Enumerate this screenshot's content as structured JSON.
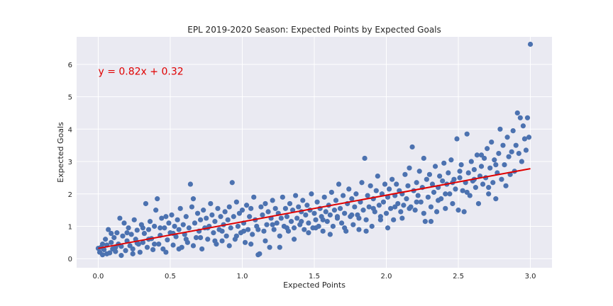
{
  "chart_data": {
    "type": "scatter",
    "title": "EPL 2019-2020 Season: Expected Points by Expected Goals",
    "xlabel": "Expected Points",
    "ylabel": "Expected Goals",
    "xlim": [
      -0.15,
      3.15
    ],
    "ylim": [
      -0.28,
      6.85
    ],
    "xticks": [
      0.0,
      0.5,
      1.0,
      1.5,
      2.0,
      2.5,
      3.0
    ],
    "xtick_labels": [
      "0.0",
      "0.5",
      "1.0",
      "1.5",
      "2.0",
      "2.5",
      "3.0"
    ],
    "yticks": [
      0,
      1,
      2,
      3,
      4,
      5,
      6
    ],
    "ytick_labels": [
      "0",
      "1",
      "2",
      "3",
      "4",
      "5",
      "6"
    ],
    "grid": true,
    "background": "#EAEAF2",
    "point_color": "#4C72B0",
    "fit_line": {
      "slope": 0.82,
      "intercept": 0.32,
      "x_range": [
        0.0,
        3.0
      ],
      "color": "#E00000"
    },
    "annotation": {
      "text": "y = 0.82x + 0.32",
      "x": 0.0,
      "y": 5.68,
      "color": "#E00000"
    },
    "points": [
      [
        0.0,
        0.32
      ],
      [
        0.02,
        0.35
      ],
      [
        0.03,
        0.12
      ],
      [
        0.04,
        0.28
      ],
      [
        0.05,
        0.6
      ],
      [
        0.06,
        0.42
      ],
      [
        0.07,
        0.9
      ],
      [
        0.08,
        0.18
      ],
      [
        0.09,
        0.5
      ],
      [
        0.1,
        0.3
      ],
      [
        0.11,
        0.65
      ],
      [
        0.12,
        0.22
      ],
      [
        0.13,
        0.8
      ],
      [
        0.14,
        0.45
      ],
      [
        0.15,
        1.25
      ],
      [
        0.16,
        0.38
      ],
      [
        0.17,
        0.7
      ],
      [
        0.18,
        1.1
      ],
      [
        0.19,
        0.25
      ],
      [
        0.2,
        0.55
      ],
      [
        0.21,
        0.95
      ],
      [
        0.22,
        0.4
      ],
      [
        0.23,
        0.75
      ],
      [
        0.24,
        0.3
      ],
      [
        0.25,
        1.2
      ],
      [
        0.26,
        0.6
      ],
      [
        0.27,
        0.88
      ],
      [
        0.28,
        0.45
      ],
      [
        0.29,
        0.2
      ],
      [
        0.3,
        1.05
      ],
      [
        0.31,
        0.5
      ],
      [
        0.32,
        0.78
      ],
      [
        0.33,
        1.7
      ],
      [
        0.34,
        0.35
      ],
      [
        0.35,
        0.9
      ],
      [
        0.36,
        1.15
      ],
      [
        0.37,
        0.62
      ],
      [
        0.38,
        0.28
      ],
      [
        0.39,
        1.0
      ],
      [
        0.4,
        1.5
      ],
      [
        0.41,
        1.85
      ],
      [
        0.42,
        0.45
      ],
      [
        0.43,
        0.72
      ],
      [
        0.44,
        1.25
      ],
      [
        0.45,
        0.3
      ],
      [
        0.46,
        0.95
      ],
      [
        0.47,
        1.3
      ],
      [
        0.48,
        0.58
      ],
      [
        0.49,
        1.1
      ],
      [
        0.5,
        0.8
      ],
      [
        0.51,
        1.35
      ],
      [
        0.52,
        0.42
      ],
      [
        0.53,
        1.0
      ],
      [
        0.54,
        0.68
      ],
      [
        0.55,
        1.2
      ],
      [
        0.56,
        0.9
      ],
      [
        0.57,
        1.55
      ],
      [
        0.58,
        0.35
      ],
      [
        0.59,
        1.05
      ],
      [
        0.6,
        0.75
      ],
      [
        0.61,
        1.3
      ],
      [
        0.62,
        0.5
      ],
      [
        0.63,
        0.95
      ],
      [
        0.64,
        2.3
      ],
      [
        0.65,
        1.6
      ],
      [
        0.66,
        1.85
      ],
      [
        0.67,
        1.1
      ],
      [
        0.68,
        0.65
      ],
      [
        0.69,
        1.4
      ],
      [
        0.7,
        0.85
      ],
      [
        0.71,
        1.2
      ],
      [
        0.72,
        0.3
      ],
      [
        0.73,
        1.5
      ],
      [
        0.74,
        0.95
      ],
      [
        0.75,
        1.25
      ],
      [
        0.76,
        0.6
      ],
      [
        0.77,
        1.0
      ],
      [
        0.78,
        1.7
      ],
      [
        0.79,
        1.35
      ],
      [
        0.8,
        0.8
      ],
      [
        0.81,
        1.15
      ],
      [
        0.82,
        0.45
      ],
      [
        0.83,
        1.55
      ],
      [
        0.84,
        0.9
      ],
      [
        0.85,
        1.3
      ],
      [
        0.86,
        0.55
      ],
      [
        0.87,
        1.05
      ],
      [
        0.88,
        1.45
      ],
      [
        0.89,
        0.7
      ],
      [
        0.9,
        1.2
      ],
      [
        0.91,
        1.6
      ],
      [
        0.92,
        0.95
      ],
      [
        0.93,
        2.35
      ],
      [
        0.94,
        1.3
      ],
      [
        0.95,
        0.6
      ],
      [
        0.96,
        1.75
      ],
      [
        0.97,
        1.0
      ],
      [
        0.98,
        1.4
      ],
      [
        0.99,
        0.8
      ],
      [
        1.0,
        1.5
      ],
      [
        1.01,
        1.1
      ],
      [
        1.02,
        0.5
      ],
      [
        1.03,
        1.65
      ],
      [
        1.04,
        0.9
      ],
      [
        1.05,
        1.3
      ],
      [
        1.06,
        1.55
      ],
      [
        1.07,
        0.75
      ],
      [
        1.08,
        1.9
      ],
      [
        1.09,
        1.2
      ],
      [
        1.1,
        1.0
      ],
      [
        1.11,
        0.12
      ],
      [
        1.12,
        0.15
      ],
      [
        1.13,
        1.6
      ],
      [
        1.14,
        1.35
      ],
      [
        1.15,
        0.85
      ],
      [
        1.16,
        1.7
      ],
      [
        1.17,
        1.05
      ],
      [
        1.18,
        1.45
      ],
      [
        1.19,
        0.35
      ],
      [
        1.2,
        1.25
      ],
      [
        1.21,
        1.8
      ],
      [
        1.22,
        0.9
      ],
      [
        1.23,
        1.55
      ],
      [
        1.24,
        1.1
      ],
      [
        1.25,
        1.4
      ],
      [
        1.26,
        0.7
      ],
      [
        1.27,
        1.25
      ],
      [
        1.28,
        1.9
      ],
      [
        1.29,
        1.0
      ],
      [
        1.3,
        1.55
      ],
      [
        1.31,
        1.3
      ],
      [
        1.32,
        0.85
      ],
      [
        1.33,
        1.7
      ],
      [
        1.34,
        1.15
      ],
      [
        1.35,
        1.5
      ],
      [
        1.36,
        0.95
      ],
      [
        1.37,
        1.95
      ],
      [
        1.38,
        1.25
      ],
      [
        1.39,
        1.6
      ],
      [
        1.4,
        1.05
      ],
      [
        1.41,
        1.45
      ],
      [
        1.42,
        1.8
      ],
      [
        1.43,
        0.9
      ],
      [
        1.44,
        1.35
      ],
      [
        1.45,
        1.65
      ],
      [
        1.46,
        1.1
      ],
      [
        1.47,
        1.5
      ],
      [
        1.48,
        2.0
      ],
      [
        1.49,
        0.95
      ],
      [
        1.5,
        1.4
      ],
      [
        1.51,
        1.2
      ],
      [
        1.52,
        1.75
      ],
      [
        1.53,
        1.0
      ],
      [
        1.54,
        1.55
      ],
      [
        1.55,
        1.3
      ],
      [
        1.56,
        0.85
      ],
      [
        1.57,
        1.9
      ],
      [
        1.58,
        1.45
      ],
      [
        1.59,
        1.15
      ],
      [
        1.6,
        1.65
      ],
      [
        1.61,
        1.35
      ],
      [
        1.62,
        2.05
      ],
      [
        1.63,
        1.0
      ],
      [
        1.64,
        1.5
      ],
      [
        1.65,
        1.8
      ],
      [
        1.66,
        1.25
      ],
      [
        1.67,
        2.3
      ],
      [
        1.68,
        1.55
      ],
      [
        1.69,
        1.1
      ],
      [
        1.7,
        1.95
      ],
      [
        1.71,
        1.4
      ],
      [
        1.72,
        0.85
      ],
      [
        1.73,
        1.7
      ],
      [
        1.74,
        2.15
      ],
      [
        1.75,
        1.3
      ],
      [
        1.76,
        1.85
      ],
      [
        1.77,
        1.05
      ],
      [
        1.78,
        1.6
      ],
      [
        1.79,
        2.0
      ],
      [
        1.8,
        1.35
      ],
      [
        1.81,
        0.9
      ],
      [
        1.82,
        1.75
      ],
      [
        1.83,
        2.35
      ],
      [
        1.84,
        1.5
      ],
      [
        1.85,
        3.1
      ],
      [
        1.86,
        1.2
      ],
      [
        1.87,
        1.95
      ],
      [
        1.88,
        1.6
      ],
      [
        1.89,
        2.25
      ],
      [
        1.9,
        1.0
      ],
      [
        1.91,
        1.85
      ],
      [
        1.92,
        1.45
      ],
      [
        1.93,
        2.1
      ],
      [
        1.94,
        2.55
      ],
      [
        1.95,
        1.65
      ],
      [
        1.96,
        1.3
      ],
      [
        1.97,
        2.0
      ],
      [
        1.98,
        1.75
      ],
      [
        1.99,
        2.3
      ],
      [
        2.0,
        1.4
      ],
      [
        2.01,
        1.9
      ],
      [
        2.02,
        2.15
      ],
      [
        2.03,
        1.55
      ],
      [
        2.04,
        2.45
      ],
      [
        2.05,
        1.2
      ],
      [
        2.06,
        1.95
      ],
      [
        2.07,
        2.3
      ],
      [
        2.08,
        1.7
      ],
      [
        2.09,
        2.1
      ],
      [
        2.1,
        1.45
      ],
      [
        2.11,
        2.0
      ],
      [
        2.12,
        1.65
      ],
      [
        2.13,
        2.6
      ],
      [
        2.14,
        1.85
      ],
      [
        2.15,
        2.25
      ],
      [
        2.16,
        2.8
      ],
      [
        2.17,
        1.6
      ],
      [
        2.18,
        3.45
      ],
      [
        2.19,
        2.1
      ],
      [
        2.2,
        1.5
      ],
      [
        2.21,
        2.35
      ],
      [
        2.22,
        1.95
      ],
      [
        2.23,
        2.7
      ],
      [
        2.24,
        1.75
      ],
      [
        2.25,
        2.2
      ],
      [
        2.26,
        3.1
      ],
      [
        2.27,
        1.15
      ],
      [
        2.28,
        2.45
      ],
      [
        2.29,
        1.9
      ],
      [
        2.3,
        2.6
      ],
      [
        2.31,
        1.6
      ],
      [
        2.32,
        2.3
      ],
      [
        2.33,
        2.05
      ],
      [
        2.34,
        2.85
      ],
      [
        2.35,
        1.45
      ],
      [
        2.36,
        2.2
      ],
      [
        2.37,
        2.55
      ],
      [
        2.38,
        1.85
      ],
      [
        2.39,
        2.4
      ],
      [
        2.4,
        2.95
      ],
      [
        2.41,
        1.55
      ],
      [
        2.42,
        2.3
      ],
      [
        2.43,
        2.65
      ],
      [
        2.44,
        2.0
      ],
      [
        2.45,
        3.05
      ],
      [
        2.46,
        1.7
      ],
      [
        2.47,
        2.45
      ],
      [
        2.48,
        2.15
      ],
      [
        2.49,
        3.7
      ],
      [
        2.5,
        1.5
      ],
      [
        2.51,
        2.5
      ],
      [
        2.52,
        2.9
      ],
      [
        2.53,
        2.1
      ],
      [
        2.54,
        1.45
      ],
      [
        2.55,
        2.35
      ],
      [
        2.56,
        3.85
      ],
      [
        2.57,
        2.65
      ],
      [
        2.58,
        1.95
      ],
      [
        2.59,
        3.0
      ],
      [
        2.6,
        2.4
      ],
      [
        2.61,
        2.75
      ],
      [
        2.62,
        2.2
      ],
      [
        2.63,
        3.2
      ],
      [
        2.64,
        1.7
      ],
      [
        2.65,
        2.55
      ],
      [
        2.66,
        2.85
      ],
      [
        2.67,
        2.3
      ],
      [
        2.68,
        3.1
      ],
      [
        2.69,
        2.5
      ],
      [
        2.7,
        3.4
      ],
      [
        2.71,
        2.0
      ],
      [
        2.72,
        2.8
      ],
      [
        2.73,
        3.6
      ],
      [
        2.74,
        2.35
      ],
      [
        2.75,
        3.05
      ],
      [
        2.76,
        1.85
      ],
      [
        2.77,
        2.65
      ],
      [
        2.78,
        3.25
      ],
      [
        2.79,
        4.0
      ],
      [
        2.8,
        2.45
      ],
      [
        2.81,
        3.5
      ],
      [
        2.82,
        2.9
      ],
      [
        2.83,
        2.25
      ],
      [
        2.84,
        3.75
      ],
      [
        2.85,
        3.15
      ],
      [
        2.86,
        2.6
      ],
      [
        2.87,
        3.3
      ],
      [
        2.88,
        3.95
      ],
      [
        2.89,
        2.7
      ],
      [
        2.9,
        3.5
      ],
      [
        2.91,
        4.5
      ],
      [
        2.92,
        3.25
      ],
      [
        2.93,
        4.35
      ],
      [
        2.94,
        3.0
      ],
      [
        2.95,
        4.1
      ],
      [
        2.96,
        3.7
      ],
      [
        2.97,
        3.35
      ],
      [
        2.98,
        4.35
      ],
      [
        2.99,
        3.75
      ],
      [
        3.0,
        6.62
      ],
      [
        0.01,
        0.2
      ],
      [
        0.03,
        0.45
      ],
      [
        0.06,
        0.15
      ],
      [
        0.09,
        0.78
      ],
      [
        0.12,
        0.35
      ],
      [
        0.16,
        0.1
      ],
      [
        0.2,
        0.8
      ],
      [
        0.24,
        0.15
      ],
      [
        0.27,
        0.48
      ],
      [
        0.31,
        0.95
      ],
      [
        0.35,
        0.6
      ],
      [
        0.39,
        0.45
      ],
      [
        0.43,
        0.95
      ],
      [
        0.47,
        0.2
      ],
      [
        0.52,
        0.78
      ],
      [
        0.56,
        0.3
      ],
      [
        0.61,
        0.6
      ],
      [
        0.66,
        0.4
      ],
      [
        0.71,
        0.65
      ],
      [
        0.76,
        0.95
      ],
      [
        0.81,
        0.55
      ],
      [
        0.86,
        0.85
      ],
      [
        0.91,
        0.4
      ],
      [
        0.96,
        0.7
      ],
      [
        1.01,
        0.85
      ],
      [
        1.06,
        0.45
      ],
      [
        1.11,
        0.9
      ],
      [
        1.16,
        0.55
      ],
      [
        1.21,
        1.05
      ],
      [
        1.26,
        0.35
      ],
      [
        1.31,
        0.95
      ],
      [
        1.36,
        0.6
      ],
      [
        1.41,
        1.15
      ],
      [
        1.46,
        0.8
      ],
      [
        1.51,
        0.95
      ],
      [
        1.56,
        1.2
      ],
      [
        1.61,
        0.75
      ],
      [
        1.66,
        1.3
      ],
      [
        1.71,
        0.95
      ],
      [
        1.76,
        1.35
      ],
      [
        1.81,
        1.25
      ],
      [
        1.86,
        0.85
      ],
      [
        1.91,
        1.55
      ],
      [
        1.96,
        1.2
      ],
      [
        2.01,
        0.95
      ],
      [
        2.06,
        1.6
      ],
      [
        2.11,
        1.25
      ],
      [
        2.16,
        1.55
      ],
      [
        2.21,
        1.75
      ],
      [
        2.26,
        1.4
      ],
      [
        2.31,
        1.15
      ],
      [
        2.36,
        1.8
      ],
      [
        2.41,
        2.0
      ],
      [
        2.46,
        2.35
      ],
      [
        2.51,
        2.7
      ],
      [
        2.56,
        2.05
      ],
      [
        2.61,
        2.45
      ],
      [
        2.66,
        3.2
      ],
      [
        2.71,
        2.2
      ],
      [
        2.76,
        2.9
      ]
    ]
  }
}
